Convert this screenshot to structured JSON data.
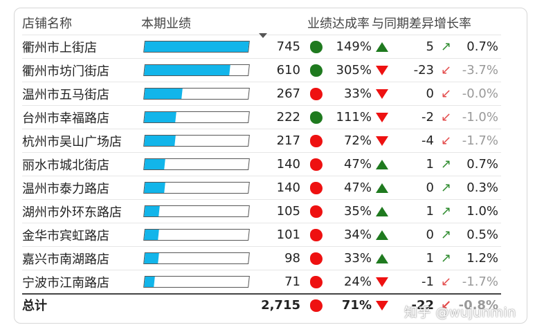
{
  "headers": {
    "store": "店铺名称",
    "performance": "本期业绩",
    "achievement": "业绩达成率",
    "yoy_diff": "与同期差异",
    "growth": "增长率"
  },
  "rows": [
    {
      "store": "衢州市上街店",
      "value": "745",
      "bar": 1.0,
      "status": "green",
      "pct": "149%",
      "trend": "up",
      "diff": "5",
      "rate": "0.7%"
    },
    {
      "store": "衢州市坊门街店",
      "value": "610",
      "bar": 0.82,
      "status": "green",
      "pct": "305%",
      "trend": "down",
      "diff": "-23",
      "rate": "-3.7%"
    },
    {
      "store": "温州市五马街店",
      "value": "267",
      "bar": 0.36,
      "status": "red",
      "pct": "33%",
      "trend": "down",
      "diff": "0",
      "rate": "-0.0%"
    },
    {
      "store": "台州市幸福路店",
      "value": "222",
      "bar": 0.3,
      "status": "green",
      "pct": "111%",
      "trend": "down",
      "diff": "-2",
      "rate": "-1.0%"
    },
    {
      "store": "杭州市吴山广场店",
      "value": "217",
      "bar": 0.29,
      "status": "red",
      "pct": "72%",
      "trend": "down",
      "diff": "-4",
      "rate": "-1.7%"
    },
    {
      "store": "丽水市城北街店",
      "value": "140",
      "bar": 0.19,
      "status": "red",
      "pct": "47%",
      "trend": "up",
      "diff": "1",
      "rate": "0.7%"
    },
    {
      "store": "温州市泰力路店",
      "value": "140",
      "bar": 0.19,
      "status": "red",
      "pct": "47%",
      "trend": "up",
      "diff": "0",
      "rate": "0.3%"
    },
    {
      "store": "湖州市外环东路店",
      "value": "105",
      "bar": 0.14,
      "status": "red",
      "pct": "35%",
      "trend": "up",
      "diff": "1",
      "rate": "1.0%"
    },
    {
      "store": "金华市宾虹路店",
      "value": "101",
      "bar": 0.135,
      "status": "red",
      "pct": "34%",
      "trend": "up",
      "diff": "0",
      "rate": "0.5%"
    },
    {
      "store": "嘉兴市南湖路店",
      "value": "98",
      "bar": 0.13,
      "status": "red",
      "pct": "33%",
      "trend": "up",
      "diff": "1",
      "rate": "1.2%"
    },
    {
      "store": "宁波市江南路店",
      "value": "71",
      "bar": 0.095,
      "status": "red",
      "pct": "24%",
      "trend": "down",
      "diff": "-1",
      "rate": "-1.7%"
    }
  ],
  "total": {
    "label": "总计",
    "value": "2,715",
    "status": "red",
    "pct": "71%",
    "trend": "down",
    "diff": "-22",
    "rate": "-0.8%"
  },
  "watermark": "知乎 @wujunmin",
  "colors": {
    "bar": "#12b5ea",
    "good": "#1f7a1f",
    "bad": "#ee1111"
  }
}
